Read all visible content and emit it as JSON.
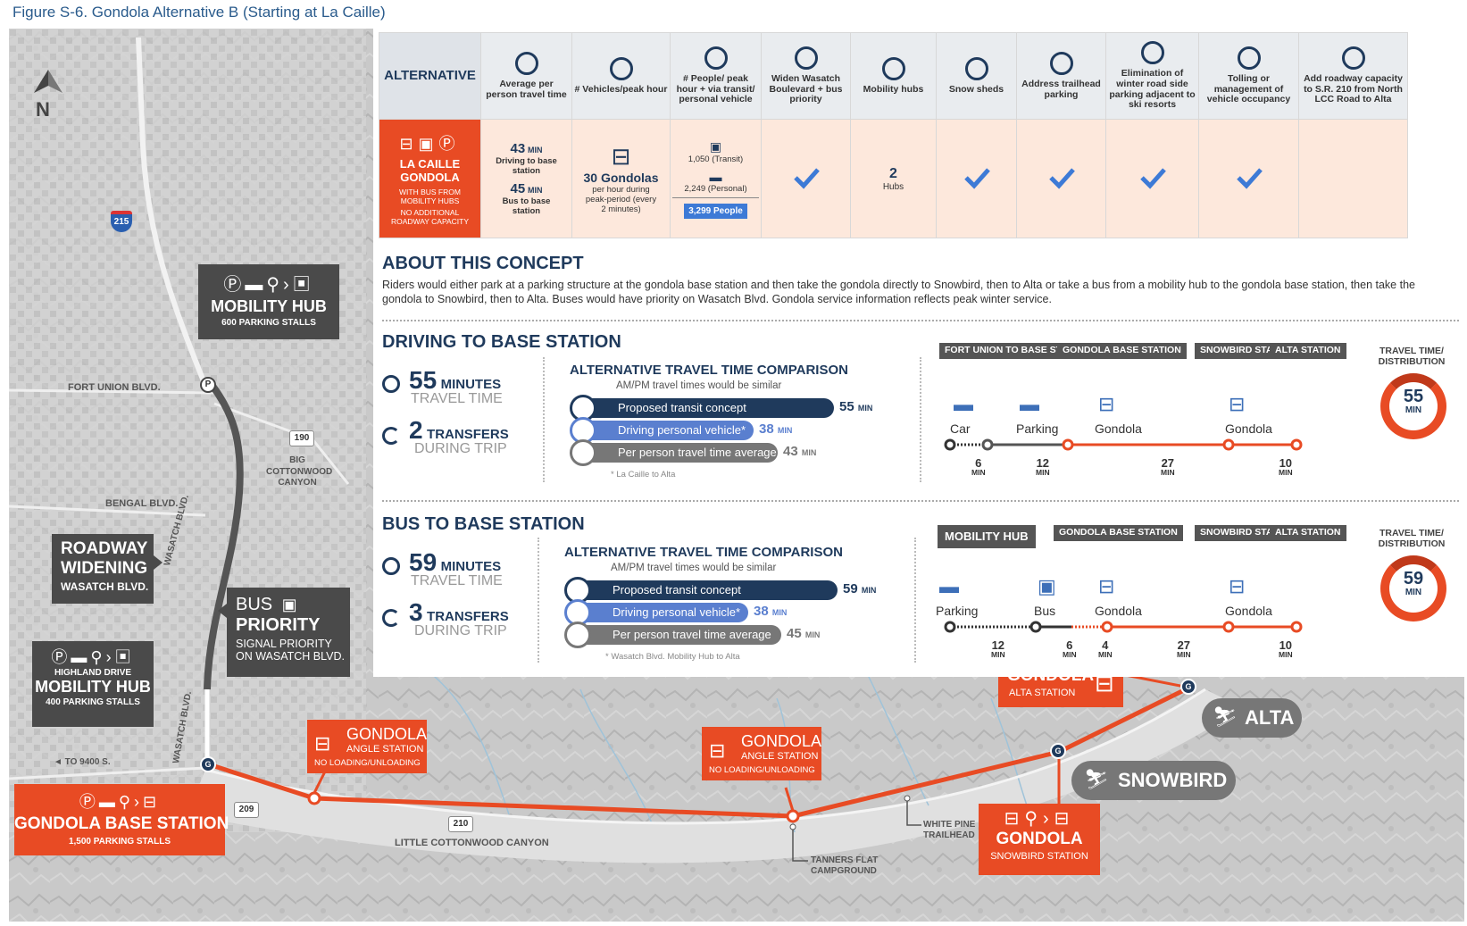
{
  "figure_title": "Figure S-6. Gondola Alternative B (Starting at La Caille)",
  "colors": {
    "accent_red": "#e84b24",
    "navy": "#1f3a5c",
    "blue": "#5a7fcf",
    "gray": "#666666",
    "highlight_blue": "#3d7ad6"
  },
  "table": {
    "headers": [
      {
        "label": "ALTERNATIVE",
        "icon": ""
      },
      {
        "label": "Average per person travel time",
        "icon": "clock-icon"
      },
      {
        "label": "# Vehicles/peak hour",
        "icon": "stopwatch-icon"
      },
      {
        "label": "# People/ peak hour + via transit/ personal vehicle",
        "icon": "people-vehicle-icon"
      },
      {
        "label": "Widen Wasatch Boulevard + bus priority",
        "icon": "road-sign-icon"
      },
      {
        "label": "Mobility hubs",
        "icon": "mobility-hub-icon"
      },
      {
        "label": "Snow sheds",
        "icon": "snow-shed-icon"
      },
      {
        "label": "Address trailhead parking",
        "icon": "parking-pin-icon"
      },
      {
        "label": "Elimination of winter road side parking adjacent to ski resorts",
        "icon": "no-parking-icon"
      },
      {
        "label": "Tolling or management of vehicle occupancy",
        "icon": "tolling-icon"
      },
      {
        "label": "Add roadway capacity to S.R. 210 from North LCC Road to Alta",
        "icon": "roadway-icon"
      }
    ],
    "row": {
      "alt_name": "LA CAILLE GONDOLA",
      "alt_desc1": "WITH BUS FROM MOBILITY HUBS",
      "alt_desc2": "NO ADDITIONAL ROADWAY CAPACITY",
      "avg_time_1_num": "43",
      "avg_time_1_unit": "MIN",
      "avg_time_1_label": "Driving to base station",
      "avg_time_2_num": "45",
      "avg_time_2_unit": "MIN",
      "avg_time_2_label": "Bus to base station",
      "vehicles_main": "30 Gondolas",
      "vehicles_sub": "per hour during peak-period (every 2 minutes)",
      "people_transit": "1,050 (Transit)",
      "people_personal": "2,249 (Personal)",
      "people_total": "3,299 People",
      "hubs_num": "2",
      "hubs_label": "Hubs"
    }
  },
  "about": {
    "heading": "ABOUT THIS CONCEPT",
    "text": "Riders would either park at a parking structure at the gondola base station and then take the gondola directly to Snowbird, then to Alta or take a bus from a mobility hub to the gondola base station, then take the gondola to Snowbird, then to Alta. Buses would have priority on Wasatch Blvd. Gondola service information reflects peak winter service."
  },
  "driving": {
    "heading": "DRIVING TO BASE STATION",
    "minutes_num": "55",
    "minutes_unit": "MINUTES",
    "minutes_sub": "TRAVEL TIME",
    "transfers_num": "2",
    "transfers_unit": "TRANSFERS",
    "transfers_sub": "DURING TRIP",
    "cmp_title": "ALTERNATIVE TRAVEL TIME COMPARISON",
    "cmp_sub": "AM/PM travel times would be similar",
    "bars": [
      {
        "label": "Proposed transit concept",
        "value": "55",
        "unit": "MIN",
        "minutes": 55
      },
      {
        "label": "Driving personal vehicle*",
        "value": "38",
        "unit": "MIN",
        "minutes": 38
      },
      {
        "label": "Per person travel time average",
        "value": "43",
        "unit": "MIN",
        "minutes": 43
      }
    ],
    "footnote": "* La Caille to Alta",
    "stations": [
      "FORT UNION TO BASE STATION",
      "GONDOLA BASE STATION",
      "SNOWBIRD STATION",
      "ALTA STATION"
    ],
    "modes": [
      "Car",
      "Parking",
      "Gondola",
      "Gondola"
    ],
    "segments": [
      {
        "n": "6",
        "u": "MIN"
      },
      {
        "n": "12",
        "u": "MIN"
      },
      {
        "n": "27",
        "u": "MIN"
      },
      {
        "n": "10",
        "u": "MIN"
      }
    ],
    "dist_title": "TRAVEL TIME/ DISTRIBUTION",
    "dist_num": "55",
    "dist_unit": "MIN"
  },
  "bus": {
    "heading": "BUS TO BASE STATION",
    "minutes_num": "59",
    "minutes_unit": "MINUTES",
    "minutes_sub": "TRAVEL TIME",
    "transfers_num": "3",
    "transfers_unit": "TRANSFERS",
    "transfers_sub": "DURING TRIP",
    "cmp_title": "ALTERNATIVE TRAVEL TIME COMPARISON",
    "cmp_sub": "AM/PM travel times would be similar",
    "bars": [
      {
        "label": "Proposed transit concept",
        "value": "59",
        "unit": "MIN",
        "minutes": 59
      },
      {
        "label": "Driving personal vehicle*",
        "value": "38",
        "unit": "MIN",
        "minutes": 38
      },
      {
        "label": "Per person travel time average",
        "value": "45",
        "unit": "MIN",
        "minutes": 45
      }
    ],
    "footnote": "* Wasatch Blvd. Mobility Hub to Alta",
    "stations": [
      "MOBILITY HUB",
      "GONDOLA BASE STATION",
      "SNOWBIRD STATION",
      "ALTA STATION"
    ],
    "modes": [
      "Parking",
      "Bus",
      "Gondola",
      "Gondola"
    ],
    "segments": [
      {
        "n": "12",
        "u": "MIN"
      },
      {
        "n": "6",
        "u": "MIN"
      },
      {
        "n": "4",
        "u": "MIN"
      },
      {
        "n": "27",
        "u": "MIN"
      },
      {
        "n": "10",
        "u": "MIN"
      }
    ],
    "dist_title": "TRAVEL TIME/ DISTRIBUTION",
    "dist_num": "59",
    "dist_unit": "MIN"
  },
  "map": {
    "north": "N",
    "i215": "215",
    "fort_union": "FORT UNION BLVD.",
    "bengal": "BENGAL BLVD.",
    "r190": "190",
    "big_cottonwood": "BIG COTTONWOOD CANYON",
    "wasatch1": "WASATCH BLVD.",
    "wasatch2": "WASATCH BLVD.",
    "to9400": "◄ TO 9400 S.",
    "r209": "209",
    "r210": "210",
    "lcc": "LITTLE COTTONWOOD CANYON",
    "white_pine": "WHITE PINE TRAILHEAD",
    "tanners": "TANNERS FLAT CAMPGROUND",
    "hub1_title": "MOBILITY HUB",
    "hub1_sub": "600 PARKING STALLS",
    "roadway_t1": "ROADWAY",
    "roadway_t2": "WIDENING",
    "roadway_sub": "WASATCH BLVD.",
    "buspri_t1": "BUS",
    "buspri_t2": "PRIORITY",
    "buspri_s1": "SIGNAL PRIORITY",
    "buspri_s2": "ON WASATCH BLVD.",
    "hub2_pre": "HIGHLAND DRIVE",
    "hub2_title": "MOBILITY HUB",
    "hub2_sub": "400 PARKING STALLS",
    "base_title": "GONDOLA BASE STATION",
    "base_sub": "1,500 PARKING STALLS",
    "angle1_t": "GONDOLA",
    "angle1_s1": "ANGLE STATION",
    "angle1_s2": "NO LOADING/UNLOADING",
    "angle2_t": "GONDOLA",
    "angle2_s1": "ANGLE STATION",
    "angle2_s2": "NO LOADING/UNLOADING",
    "alta_st_t": "GONDOLA",
    "alta_st_s": "ALTA STATION",
    "snowbird_st_t": "GONDOLA",
    "snowbird_st_s": "SNOWBIRD STATION",
    "alta": "ALTA",
    "snowbird": "SNOWBIRD",
    "p_marker": "P",
    "g_marker": "G"
  }
}
